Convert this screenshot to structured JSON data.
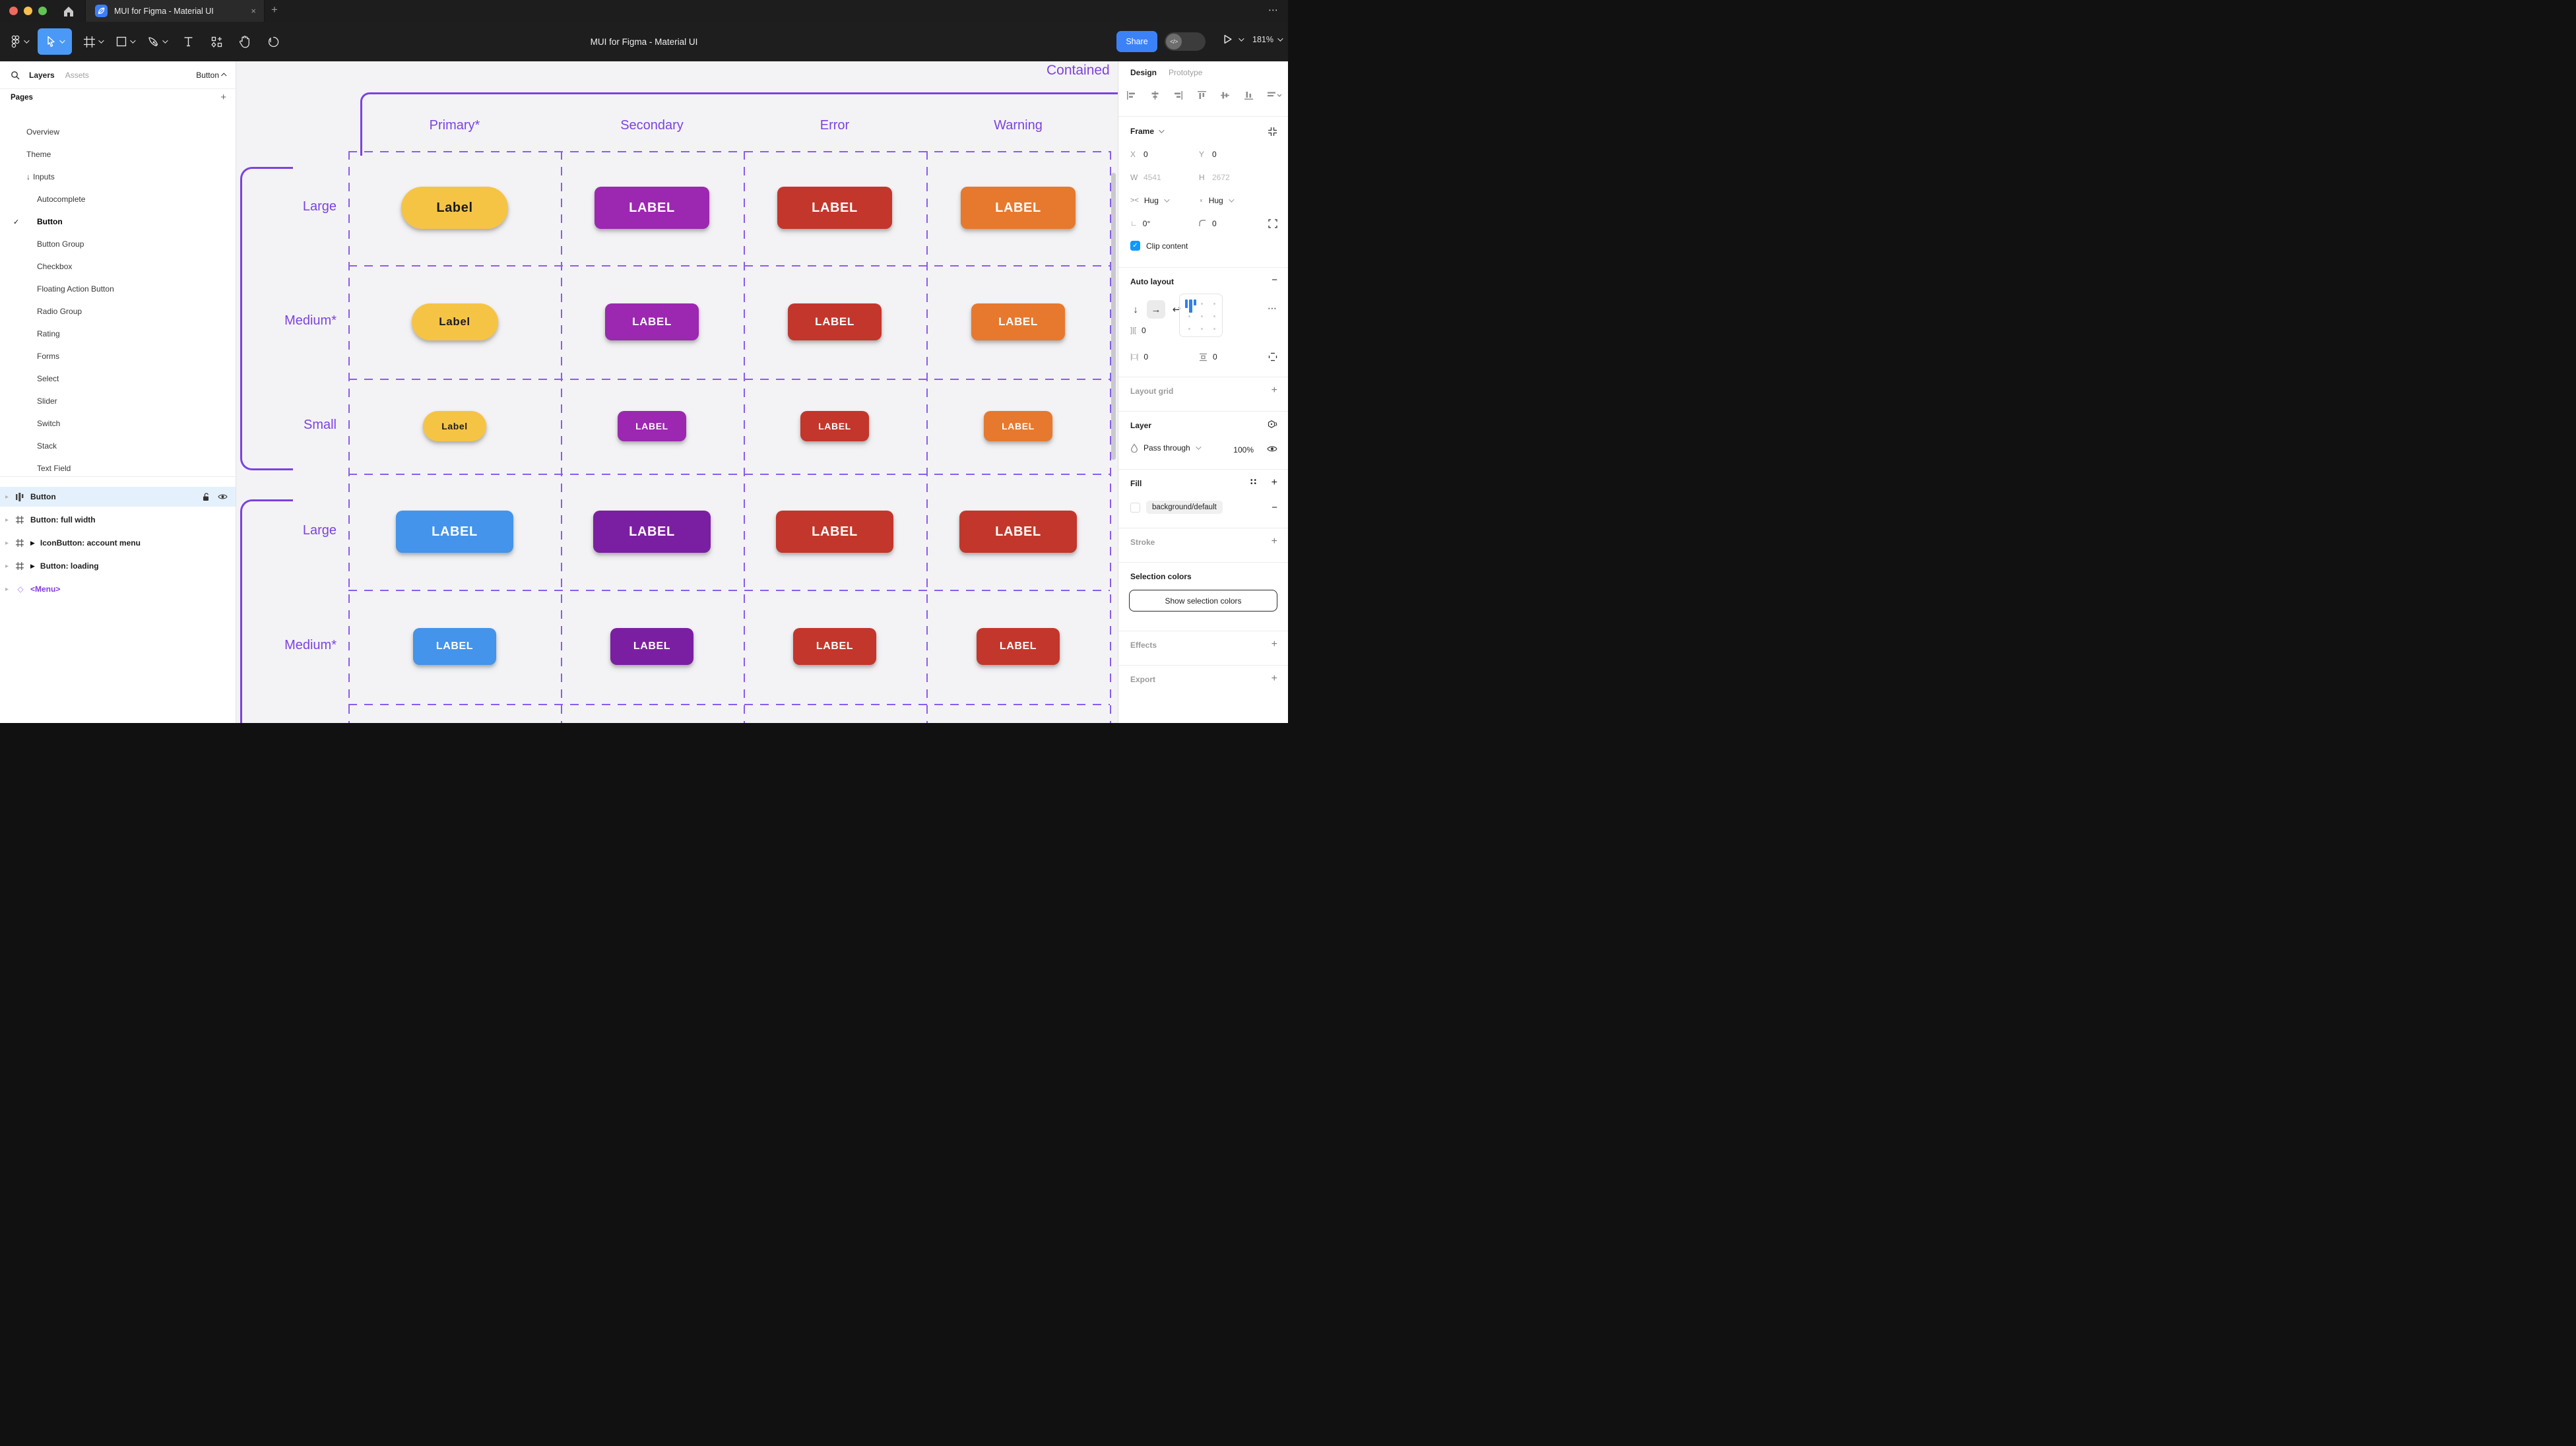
{
  "window": {
    "traffic_lights": [
      "#EC6A5E",
      "#F5BF4F",
      "#61C454"
    ],
    "tab": {
      "title": "MUI for Figma - Material UI",
      "close": "×"
    },
    "new_tab": "+",
    "overflow": "⋯"
  },
  "toolbar": {
    "title": "MUI for Figma - Material UI",
    "tools": [
      {
        "name": "main-menu-icon",
        "chevron": true
      },
      {
        "name": "move-tool-icon",
        "chevron": true,
        "selected": true
      },
      {
        "name": "frame-tool-icon",
        "chevron": true
      },
      {
        "name": "shape-tool-icon",
        "chevron": true
      },
      {
        "name": "pen-tool-icon",
        "chevron": true
      },
      {
        "name": "text-tool-icon"
      },
      {
        "name": "resources-tool-icon"
      },
      {
        "name": "hand-tool-icon"
      },
      {
        "name": "comment-tool-icon"
      }
    ],
    "share_label": "Share",
    "dev_toggle_icon": "</>",
    "zoom_level": "181%"
  },
  "sidebar": {
    "tabs": {
      "layers": "Layers",
      "assets": "Assets"
    },
    "page_selector": "Button",
    "pages_header": {
      "title": "Pages",
      "add": "+"
    },
    "pages": [
      {
        "label": "Overview"
      },
      {
        "label": "Theme"
      },
      {
        "label": "Inputs",
        "prefix": "↓"
      },
      {
        "label": "Autocomplete",
        "indent": true
      },
      {
        "label": "Button",
        "indent": true,
        "selected": true
      },
      {
        "label": "Button Group",
        "indent": true
      },
      {
        "label": "Checkbox",
        "indent": true
      },
      {
        "label": "Floating Action Button",
        "indent": true
      },
      {
        "label": "Radio Group",
        "indent": true
      },
      {
        "label": "Rating",
        "indent": true
      },
      {
        "label": "Forms",
        "indent": true
      },
      {
        "label": "Select",
        "indent": true
      },
      {
        "label": "Slider",
        "indent": true
      },
      {
        "label": "Switch",
        "indent": true
      },
      {
        "label": "Stack",
        "indent": true
      },
      {
        "label": "Text Field",
        "indent": true
      }
    ],
    "layers": [
      {
        "label": "Button",
        "icon": "autolayout-icon",
        "selected": true,
        "trailing": [
          "unlock-icon",
          "eye-icon"
        ]
      },
      {
        "label": "Button: full width",
        "icon": "frame-icon"
      },
      {
        "label": "IconButton: account menu",
        "icon": "frame-icon",
        "component_marker": "▶"
      },
      {
        "label": "Button: loading",
        "icon": "frame-icon",
        "component_marker": "▶"
      },
      {
        "label": "<Menu>",
        "icon": "diamond-icon",
        "purple": true
      }
    ]
  },
  "canvas": {
    "frame_title": "Contained",
    "annotation_color": "#7C42E0",
    "grid_color": "#8A5CF0",
    "columns": [
      "Primary*",
      "Secondary",
      "Error",
      "Warning"
    ],
    "rows": [
      {
        "label": "Large",
        "size": "large",
        "group": 1,
        "buttons": [
          {
            "text": "Label",
            "bg": "#F6C445",
            "fg": "#1C1B1F",
            "pill": true
          },
          {
            "text": "LABEL",
            "bg": "#9C27B0",
            "fg": "#FFFFFF"
          },
          {
            "text": "LABEL",
            "bg": "#C3362B",
            "fg": "#FFFFFF"
          },
          {
            "text": "LABEL",
            "bg": "#E6792E",
            "fg": "#FFFFFF"
          }
        ]
      },
      {
        "label": "Medium*",
        "size": "medium",
        "group": 1,
        "buttons": [
          {
            "text": "Label",
            "bg": "#F6C445",
            "fg": "#1C1B1F",
            "pill": true
          },
          {
            "text": "LABEL",
            "bg": "#9C27B0",
            "fg": "#FFFFFF"
          },
          {
            "text": "LABEL",
            "bg": "#C3362B",
            "fg": "#FFFFFF"
          },
          {
            "text": "LABEL",
            "bg": "#E6792E",
            "fg": "#FFFFFF"
          }
        ]
      },
      {
        "label": "Small",
        "size": "small",
        "group": 1,
        "buttons": [
          {
            "text": "Label",
            "bg": "#F6C445",
            "fg": "#1C1B1F",
            "pill": true
          },
          {
            "text": "LABEL",
            "bg": "#9C27B0",
            "fg": "#FFFFFF"
          },
          {
            "text": "LABEL",
            "bg": "#C3362B",
            "fg": "#FFFFFF"
          },
          {
            "text": "LABEL",
            "bg": "#E6792E",
            "fg": "#FFFFFF"
          }
        ]
      },
      {
        "label": "Large",
        "size": "large2",
        "group": 2,
        "buttons": [
          {
            "text": "LABEL",
            "bg": "#4394EA",
            "fg": "#FFFFFF"
          },
          {
            "text": "LABEL",
            "bg": "#7B1FA2",
            "fg": "#FFFFFF"
          },
          {
            "text": "LABEL",
            "bg": "#C3362B",
            "fg": "#FFFFFF"
          },
          {
            "text": "LABEL",
            "bg": "#C3362B",
            "fg": "#FFFFFF"
          }
        ]
      },
      {
        "label": "Medium*",
        "size": "medium2",
        "group": 2,
        "buttons": [
          {
            "text": "LABEL",
            "bg": "#4394EA",
            "fg": "#FFFFFF"
          },
          {
            "text": "LABEL",
            "bg": "#7B1FA2",
            "fg": "#FFFFFF"
          },
          {
            "text": "LABEL",
            "bg": "#C3362B",
            "fg": "#FFFFFF"
          },
          {
            "text": "LABEL",
            "bg": "#C3362B",
            "fg": "#FFFFFF"
          }
        ]
      }
    ]
  },
  "inspector": {
    "tabs": {
      "design": "Design",
      "prototype": "Prototype"
    },
    "align_icons": [
      "align-left-icon",
      "align-h-center-icon",
      "align-right-icon",
      "align-top-icon",
      "align-v-center-icon",
      "align-bottom-icon",
      "distribute-icon"
    ],
    "frame": {
      "title": "Frame",
      "x_label": "X",
      "x": "0",
      "y_label": "Y",
      "y": "0",
      "w_label": "W",
      "w": "4541",
      "h_label": "H",
      "h": "2672",
      "h_resize": "Hug",
      "v_resize": "Hug",
      "rotation": "0°",
      "radius": "0",
      "clip_label": "Clip content",
      "clip_checked": true
    },
    "auto_layout": {
      "title": "Auto layout",
      "gap": "0",
      "pad_h": "0",
      "pad_v": "0",
      "more": "⋯",
      "remove": "−"
    },
    "layout_grid": {
      "title": "Layout grid",
      "add": "+"
    },
    "layer": {
      "title": "Layer",
      "blend": "Pass through",
      "opacity": "100%"
    },
    "fill": {
      "title": "Fill",
      "token": "background/default",
      "add": "+",
      "remove": "−"
    },
    "stroke": {
      "title": "Stroke",
      "add": "+"
    },
    "selection_colors": {
      "title": "Selection colors",
      "button": "Show selection colors"
    },
    "effects": {
      "title": "Effects",
      "add": "+"
    },
    "export": {
      "title": "Export",
      "add": "+"
    }
  }
}
